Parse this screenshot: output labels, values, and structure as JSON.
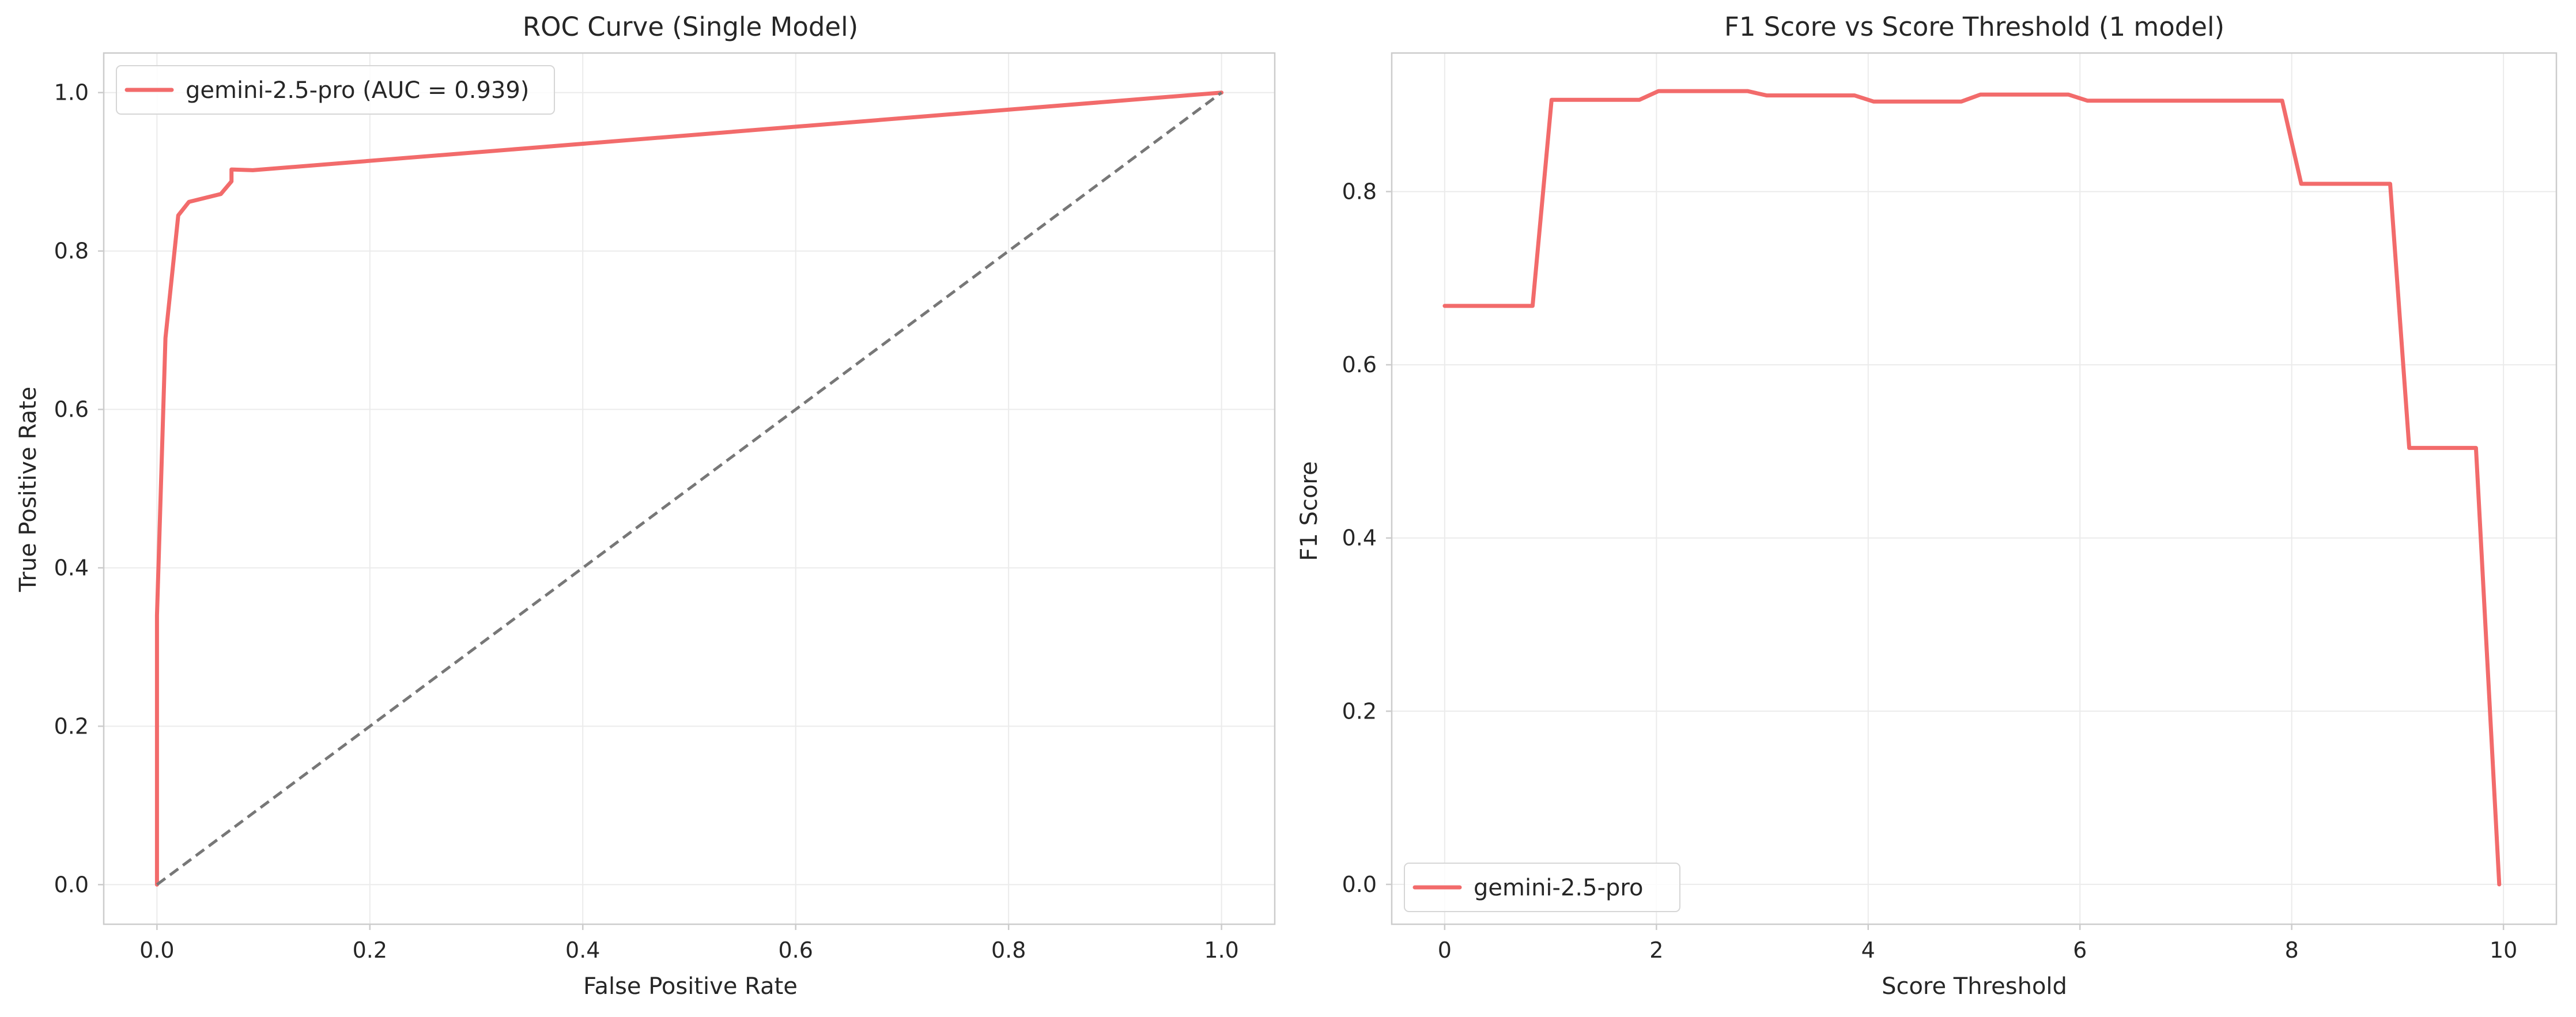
{
  "chart_data": [
    {
      "id": "roc",
      "type": "line",
      "title": "ROC Curve (Single Model)",
      "xlabel": "False Positive Rate",
      "ylabel": "True Positive Rate",
      "xlim": [
        -0.05,
        1.05
      ],
      "ylim": [
        -0.05,
        1.05
      ],
      "xticks": [
        0.0,
        0.2,
        0.4,
        0.6,
        0.8,
        1.0
      ],
      "yticks": [
        0.0,
        0.2,
        0.4,
        0.6,
        0.8,
        1.0
      ],
      "tick_format": "0.0",
      "grid": true,
      "legend_position": "upper-left",
      "series": [
        {
          "name": "gemini-2.5-pro (AUC = 0.939)",
          "color": "#f26b6b",
          "style": "solid",
          "x": [
            0.0,
            0.0,
            0.008,
            0.02,
            0.03,
            0.06,
            0.07,
            0.07,
            0.09,
            1.0
          ],
          "y": [
            0.0,
            0.34,
            0.69,
            0.845,
            0.862,
            0.872,
            0.888,
            0.903,
            0.902,
            1.0
          ]
        },
        {
          "color": "#777777",
          "style": "dashed",
          "x": [
            0.0,
            1.0
          ],
          "y": [
            0.0,
            1.0
          ]
        }
      ]
    },
    {
      "id": "f1",
      "type": "line",
      "title": "F1 Score vs Score Threshold (1 model)",
      "xlabel": "Score Threshold",
      "ylabel": "F1 Score",
      "xlim": [
        -0.5,
        10.5
      ],
      "ylim": [
        -0.046,
        0.96
      ],
      "xticks": [
        0,
        2,
        4,
        6,
        8,
        10
      ],
      "yticks": [
        0.0,
        0.2,
        0.4,
        0.6,
        0.8
      ],
      "tick_format_x": "0",
      "tick_format": "0.0",
      "grid": true,
      "legend_position": "lower-left",
      "series": [
        {
          "name": "gemini-2.5-pro",
          "color": "#f26b6b",
          "style": "solid",
          "x": [
            0.0,
            0.83,
            1.01,
            1.84,
            2.02,
            2.86,
            3.04,
            3.87,
            4.05,
            4.88,
            5.06,
            5.89,
            6.07,
            7.91,
            8.09,
            8.93,
            9.11,
            9.74,
            9.96
          ],
          "y": [
            0.668,
            0.668,
            0.906,
            0.906,
            0.916,
            0.916,
            0.911,
            0.911,
            0.904,
            0.904,
            0.912,
            0.912,
            0.905,
            0.905,
            0.809,
            0.809,
            0.504,
            0.504,
            0.0
          ]
        }
      ]
    }
  ]
}
